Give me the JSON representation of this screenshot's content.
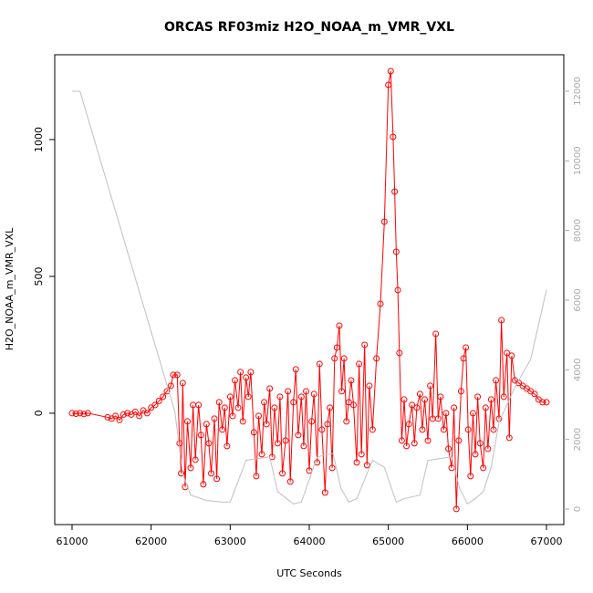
{
  "chart_data": {
    "type": "line",
    "title": "ORCAS RF03miz H2O_NOAA_m_VMR_VXL",
    "x_label": "UTC Seconds",
    "y_label": "H2O_NOAA_m_VMR_VXL",
    "xlim": [
      60781,
      67219
    ],
    "xticks": [
      61000,
      62000,
      63000,
      64000,
      65000,
      66000,
      67000
    ],
    "ylim": [
      -407,
      1310
    ],
    "yticks": [
      0,
      500,
      1000
    ],
    "y2lim": [
      -445,
      13047
    ],
    "y2ticks": [
      0,
      2000,
      4000,
      6000,
      8000,
      10000,
      12000
    ],
    "series": [
      {
        "color": "#ff0000",
        "markers": true,
        "x": [
          61000,
          61050,
          61100,
          61150,
          61200,
          61450,
          61500,
          61550,
          61600,
          61650,
          61700,
          61750,
          61800,
          61850,
          61900,
          61950,
          62000,
          62050,
          62100,
          62150,
          62200,
          62250,
          62280,
          62330,
          62360,
          62380,
          62400,
          62430,
          62460,
          62500,
          62530,
          62560,
          62600,
          62630,
          62660,
          62700,
          62730,
          62760,
          62800,
          62830,
          62860,
          62900,
          62930,
          62960,
          63000,
          63030,
          63060,
          63100,
          63130,
          63160,
          63200,
          63230,
          63260,
          63300,
          63330,
          63360,
          63400,
          63430,
          63460,
          63500,
          63530,
          63560,
          63600,
          63630,
          63660,
          63700,
          63730,
          63760,
          63800,
          63830,
          63860,
          63900,
          63930,
          63960,
          64000,
          64030,
          64060,
          64100,
          64130,
          64160,
          64200,
          64230,
          64260,
          64290,
          64320,
          64350,
          64380,
          64410,
          64440,
          64470,
          64500,
          64530,
          64560,
          64600,
          64630,
          64660,
          64700,
          64730,
          64760,
          64800,
          64850,
          64900,
          64950,
          65000,
          65030,
          65060,
          65080,
          65100,
          65120,
          65140,
          65170,
          65200,
          65230,
          65260,
          65300,
          65330,
          65360,
          65400,
          65430,
          65460,
          65500,
          65530,
          65560,
          65600,
          65630,
          65660,
          65700,
          65730,
          65760,
          65800,
          65830,
          65860,
          65890,
          65920,
          65950,
          65980,
          66010,
          66040,
          66070,
          66100,
          66130,
          66160,
          66200,
          66230,
          66260,
          66300,
          66330,
          66360,
          66400,
          66430,
          66460,
          66500,
          66530,
          66560,
          66600,
          66650,
          66700,
          66750,
          66800,
          66850,
          66900,
          66950,
          67000
        ],
        "values": [
          0,
          -2,
          0,
          -3,
          0,
          -15,
          -20,
          -10,
          -25,
          -5,
          0,
          -5,
          5,
          -10,
          10,
          0,
          20,
          30,
          45,
          60,
          80,
          100,
          140,
          140,
          -110,
          -220,
          110,
          -270,
          -30,
          -200,
          30,
          -170,
          30,
          -80,
          -260,
          -40,
          -110,
          -220,
          -20,
          -240,
          40,
          -60,
          20,
          -120,
          60,
          -10,
          120,
          20,
          150,
          -30,
          130,
          60,
          150,
          -70,
          -230,
          -10,
          -150,
          40,
          -40,
          90,
          -160,
          20,
          -110,
          60,
          -220,
          -100,
          80,
          -250,
          40,
          160,
          -80,
          60,
          -120,
          80,
          -210,
          -30,
          70,
          -180,
          180,
          -60,
          -290,
          -40,
          20,
          -200,
          200,
          240,
          320,
          80,
          200,
          -30,
          40,
          120,
          30,
          -180,
          180,
          -150,
          250,
          -190,
          100,
          -60,
          200,
          400,
          700,
          1200,
          1250,
          1010,
          810,
          590,
          450,
          220,
          -100,
          50,
          -120,
          -40,
          30,
          -110,
          20,
          70,
          -60,
          50,
          -100,
          100,
          -20,
          290,
          -20,
          60,
          -60,
          0,
          -130,
          -200,
          20,
          -350,
          -100,
          80,
          200,
          240,
          -60,
          -230,
          0,
          -150,
          60,
          -110,
          -200,
          20,
          -130,
          50,
          -60,
          120,
          -20,
          340,
          60,
          220,
          -90,
          210,
          120,
          110,
          100,
          90,
          80,
          70,
          50,
          40,
          40
        ]
      },
      {
        "color": "#c0c0c0",
        "axis": "y2",
        "markers": false,
        "x": [
          61000,
          61100,
          62300,
          62400,
          62500,
          62700,
          62900,
          63000,
          63200,
          63500,
          63600,
          63800,
          63900,
          64100,
          64300,
          64400,
          64500,
          64600,
          64800,
          64950,
          65100,
          65200,
          65400,
          65500,
          65800,
          65900,
          66000,
          66100,
          66200,
          66300,
          66400,
          66600,
          66800,
          67000
        ],
        "values": [
          12000,
          12000,
          2800,
          1000,
          400,
          250,
          200,
          200,
          1400,
          1500,
          500,
          150,
          200,
          1500,
          1600,
          600,
          200,
          300,
          1400,
          1200,
          200,
          300,
          400,
          1400,
          1500,
          600,
          150,
          300,
          500,
          1200,
          2500,
          3500,
          4300,
          6300
        ]
      }
    ]
  }
}
